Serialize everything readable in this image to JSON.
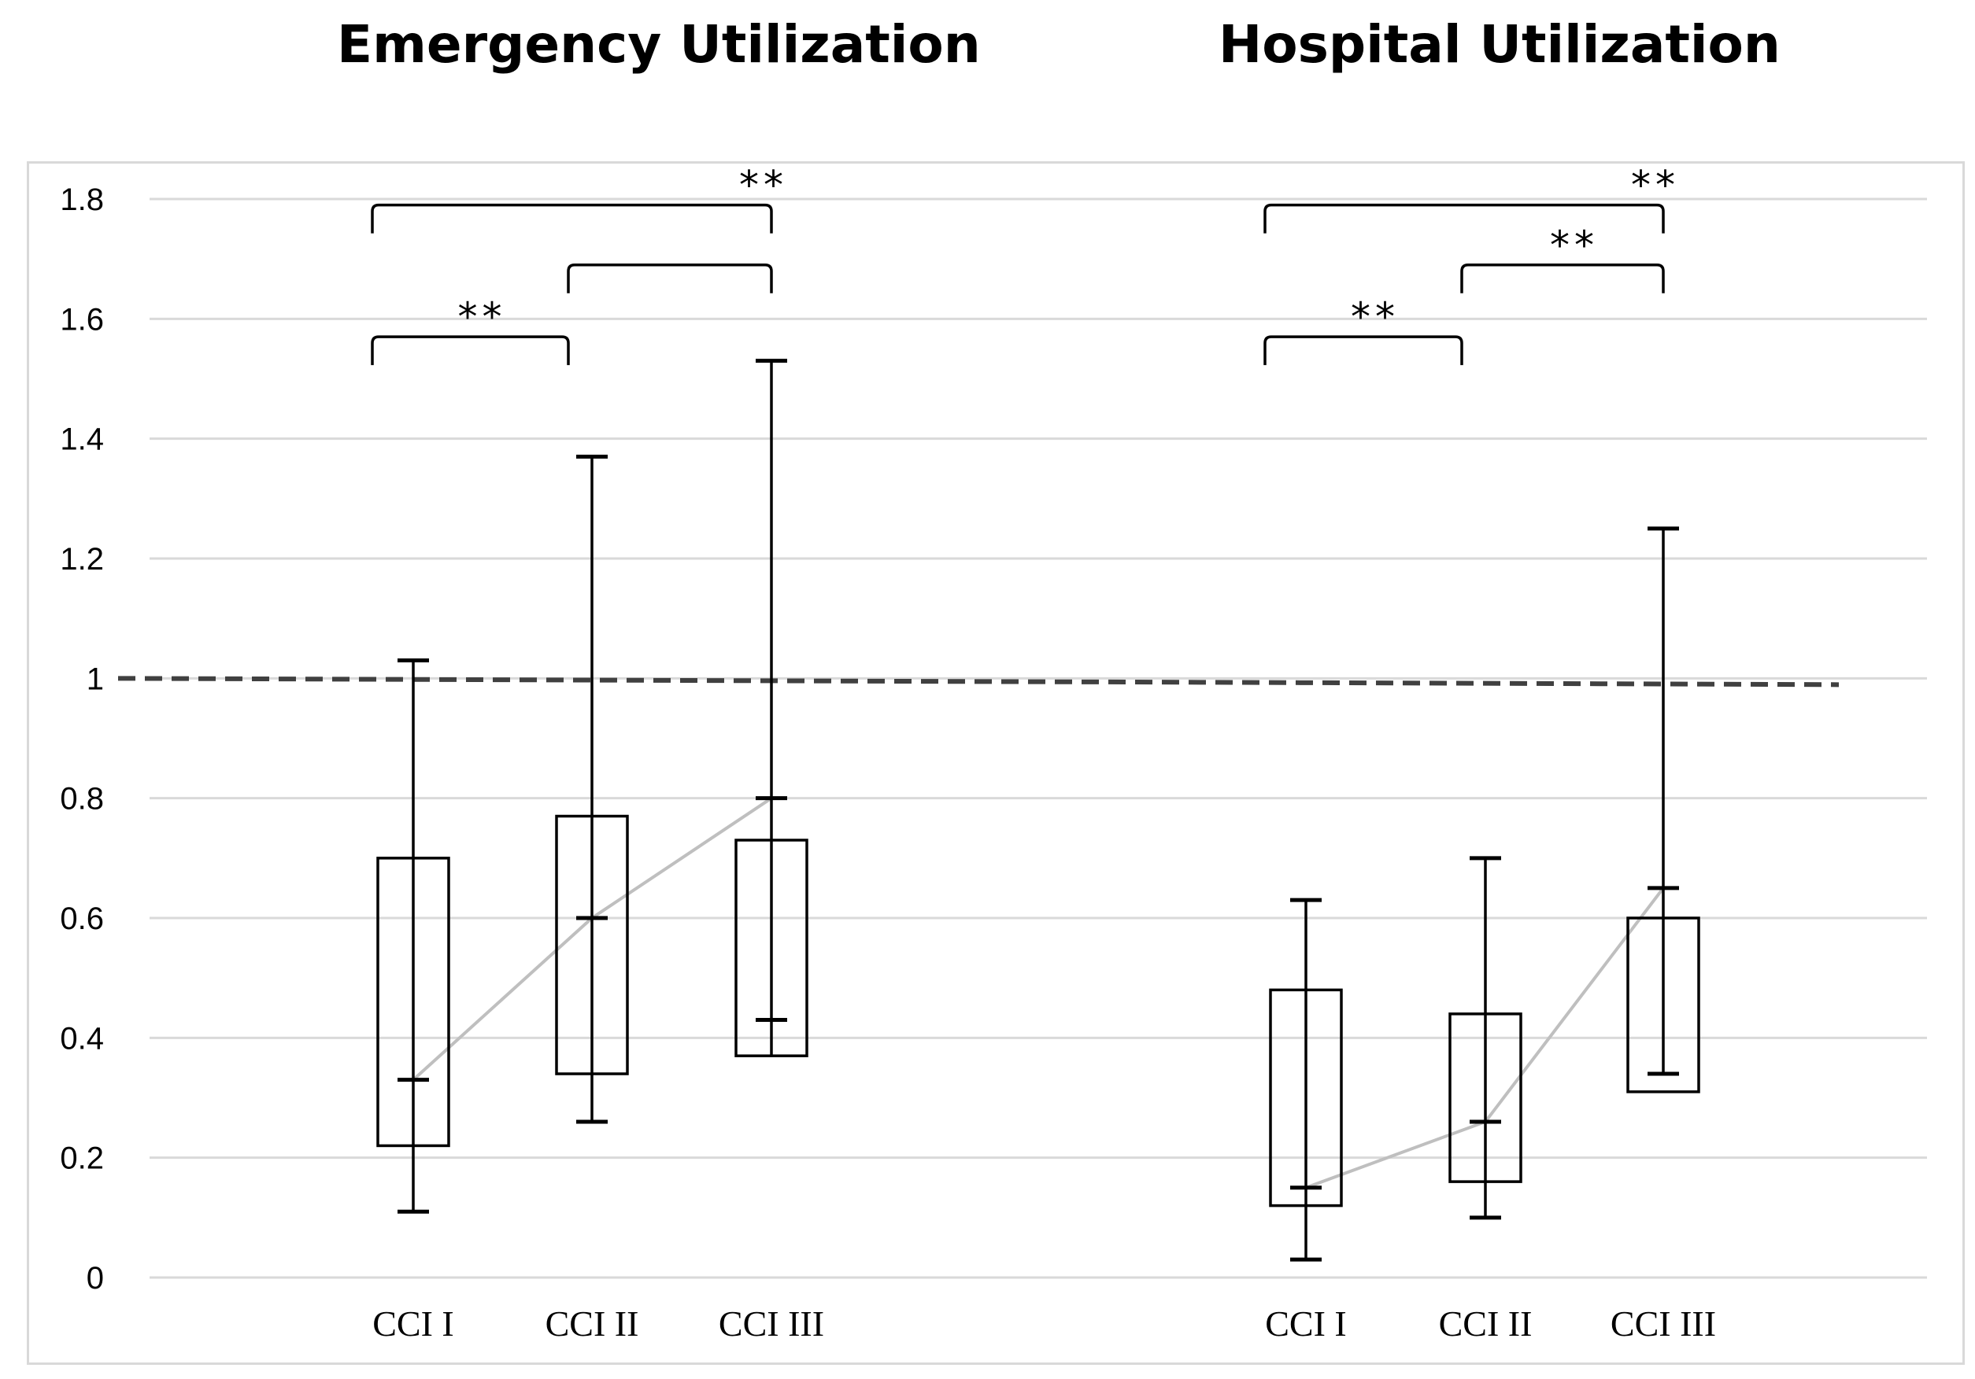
{
  "chart_data": [
    {
      "type": "box",
      "title": "Emergency Utilization",
      "categories": [
        "CCI I",
        "CCI II",
        "CCI III"
      ],
      "box_lower": [
        0.22,
        0.34,
        0.37
      ],
      "box_upper": [
        0.7,
        0.77,
        0.73
      ],
      "whisker_low": [
        0.11,
        0.26,
        0.37
      ],
      "whisker_high": [
        1.03,
        1.37,
        1.53
      ],
      "marker_low": [
        0.11,
        0.26,
        0.43
      ],
      "center_marker": [
        0.33,
        0.6,
        0.8
      ],
      "trend_line": [
        0.33,
        0.6,
        0.8
      ],
      "reference_line": 1.0,
      "significance": [
        {
          "from": 0,
          "to": 1,
          "label": "**",
          "level": 1.57
        },
        {
          "from": 1,
          "to": 2,
          "label": "",
          "level": 1.69
        },
        {
          "from": 0,
          "to": 2,
          "label": "**",
          "level": 1.79
        }
      ]
    },
    {
      "type": "box",
      "title": "Hospital Utilization",
      "categories": [
        "CCI I",
        "CCI II",
        "CCI III"
      ],
      "box_lower": [
        0.12,
        0.16,
        0.31
      ],
      "box_upper": [
        0.48,
        0.44,
        0.6
      ],
      "whisker_low": [
        0.03,
        0.1,
        0.34
      ],
      "whisker_high": [
        0.63,
        0.7,
        1.25
      ],
      "marker_low": [
        0.03,
        0.1,
        0.34
      ],
      "center_marker": [
        0.15,
        0.26,
        0.65
      ],
      "trend_line": [
        0.15,
        0.26,
        0.65
      ],
      "reference_line": 1.0,
      "significance": [
        {
          "from": 0,
          "to": 1,
          "label": "**",
          "level": 1.57
        },
        {
          "from": 1,
          "to": 2,
          "label": "**",
          "level": 1.69
        },
        {
          "from": 0,
          "to": 2,
          "label": "**",
          "level": 1.79
        }
      ]
    }
  ],
  "y_axis": {
    "ylim": [
      0,
      1.8
    ],
    "ticks": [
      0,
      0.2,
      0.4,
      0.6,
      0.8,
      1,
      1.2,
      1.4,
      1.6,
      1.8
    ],
    "tick_labels": [
      "0",
      "0.2",
      "0.4",
      "0.6",
      "0.8",
      "1",
      "1.2",
      "1.4",
      "1.6",
      "1.8"
    ],
    "grid": true
  },
  "colors": {
    "grid": "#d9d9d9",
    "box_stroke": "#000000",
    "trend": "#bfbfbf",
    "reference": "#404040"
  }
}
